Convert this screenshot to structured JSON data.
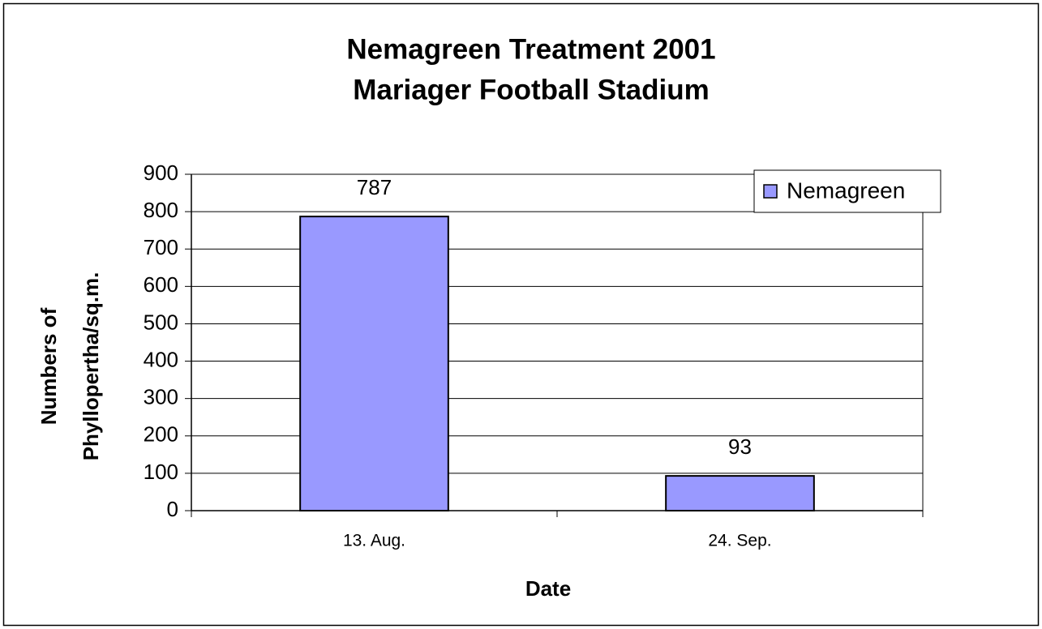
{
  "chart_data": {
    "type": "bar",
    "title": "Nemagreen Treatment 2001",
    "subtitle": "Mariager Football Stadium",
    "xlabel": "Date",
    "ylabel": [
      "Numbers of",
      "Phyllopertha/sq.m."
    ],
    "categories": [
      "13. Aug.",
      "24. Sep."
    ],
    "series": [
      {
        "name": "Nemagreen",
        "color": "#9999ff",
        "values": [
          787,
          93
        ]
      }
    ],
    "ylim": [
      0,
      900
    ],
    "yticks": [
      0,
      100,
      200,
      300,
      400,
      500,
      600,
      700,
      800,
      900
    ],
    "grid": true,
    "legend": "top-right"
  }
}
